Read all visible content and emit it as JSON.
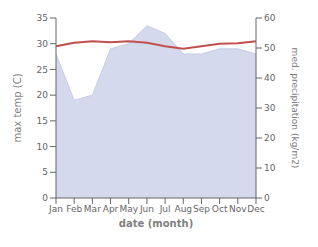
{
  "chart_data": {
    "type": "line",
    "categories": [
      "Jan",
      "Feb",
      "Mar",
      "Apr",
      "May",
      "Jun",
      "Jul",
      "Aug",
      "Sep",
      "Oct",
      "Nov",
      "Dec"
    ],
    "series": [
      {
        "type": "area",
        "color": "#c5cce8",
        "values": [
          28,
          19,
          20,
          29,
          30,
          33.5,
          32,
          28,
          28,
          29,
          29,
          28
        ]
      },
      {
        "type": "line",
        "color": "#c0504d",
        "values": [
          29.5,
          30.2,
          30.5,
          30.3,
          30.5,
          30.2,
          29.5,
          29.0,
          29.5,
          30.0,
          30.1,
          30.5
        ]
      }
    ],
    "xlabel": "date (month)",
    "ylabel": "max temp (C)",
    "y2label": "med. precipitation (kg/m2)",
    "ylim": [
      0,
      35
    ],
    "yticks": [
      0,
      5,
      10,
      15,
      20,
      25,
      30,
      35
    ],
    "y2lim": [
      0,
      60
    ],
    "y2ticks": [
      0,
      10,
      20,
      30,
      40,
      50,
      60
    ],
    "grid": false
  }
}
